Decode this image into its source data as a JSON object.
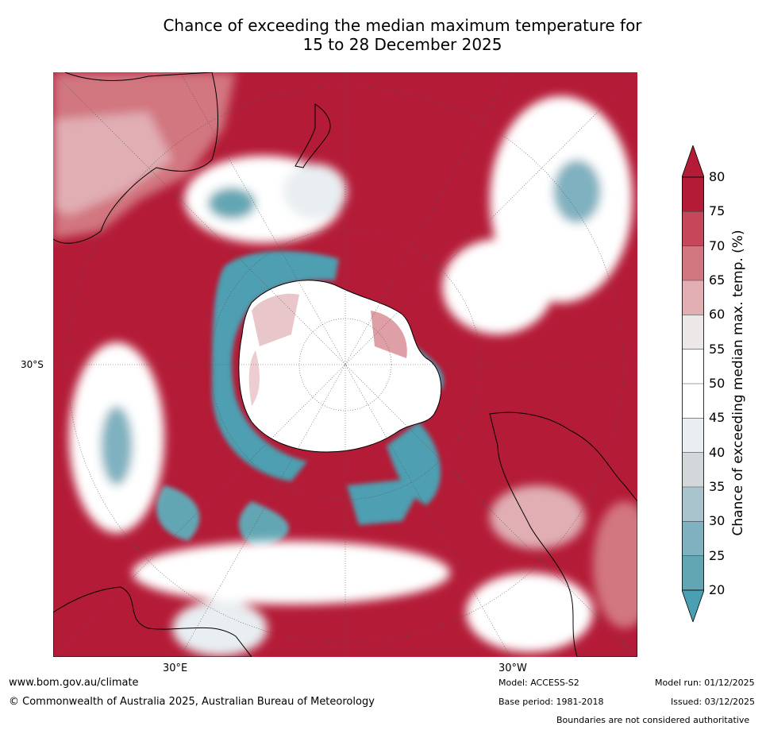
{
  "title": {
    "line1": "Chance of exceeding the median maximum temperature for",
    "line2": "15 to 28 December 2025"
  },
  "map": {
    "projection": "south-polar-stereographic",
    "lat_label": "30°S",
    "lon_labels": [
      "30°E",
      "30°W"
    ],
    "icons": [
      "coastline",
      "graticule",
      "contour-field"
    ]
  },
  "colorbar": {
    "label": "Chance of exceeding median max. temp. (%)",
    "ticks": [
      "80",
      "75",
      "70",
      "65",
      "60",
      "55",
      "50",
      "45",
      "40",
      "35",
      "30",
      "25",
      "20"
    ],
    "colors_top_to_bottom": [
      "#b41b37",
      "#c6465a",
      "#d27680",
      "#e0aeb3",
      "#ece8e8",
      "#ffffff",
      "#ffffff",
      "#e8eef1",
      "#d2d7da",
      "#a9c4cc",
      "#80b1c0",
      "#63a6b3",
      "#4d9fb1"
    ],
    "extend_high_color": "#b41b37",
    "extend_low_color": "#4a9fb2"
  },
  "footer": {
    "url": "www.bom.gov.au/climate",
    "copyright": "© Commonwealth of Australia 2025, Australian Bureau of Meteorology",
    "model": "Model: ACCESS-S2",
    "base_period": "Base period: 1981-2018",
    "model_run": "Model run: 01/12/2025",
    "issued": "Issued: 03/12/2025",
    "disclaimer": "Boundaries are not considered authoritative"
  },
  "colors": {
    "warm_high": "#b41b37",
    "warm_mid": "#d27680",
    "neutral": "#ffffff",
    "cool_mid": "#a9c4cc",
    "cool_low": "#4d9fb1"
  }
}
